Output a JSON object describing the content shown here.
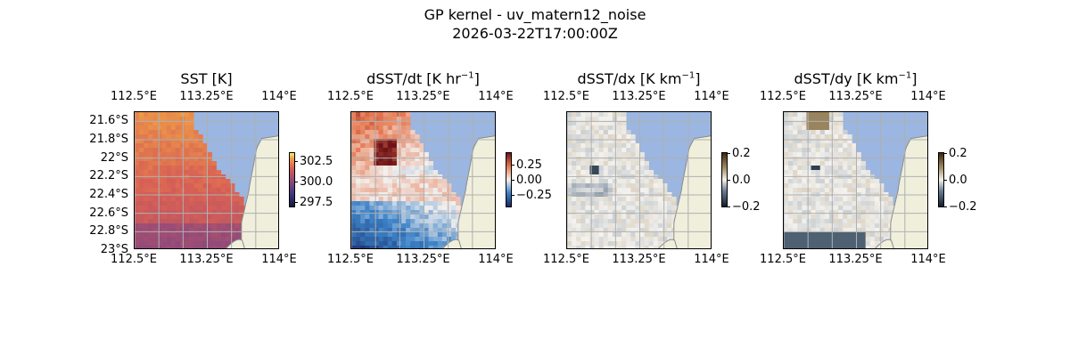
{
  "chart_data": {
    "type": "heatmap",
    "suptitle": "GP kernel - uv_matern12_noise",
    "timestamp": "2026-03-22T17:00:00Z",
    "x_ticks": [
      "112.5°E",
      "113.25°E",
      "114°E"
    ],
    "xlim": [
      112.5,
      114.0
    ],
    "x_tick_values": [
      112.5,
      113.25,
      114.0
    ],
    "ylim": [
      -23.0,
      -21.5
    ],
    "y_tick_values": [
      -21.6,
      -21.8,
      -22.0,
      -22.2,
      -22.4,
      -22.6,
      -22.8,
      -23.0
    ],
    "y_ticks": [
      "21.6°S",
      "21.8°S",
      "22°S",
      "22.2°S",
      "22.4°S",
      "22.6°S",
      "22.8°S",
      "23°S"
    ],
    "grid": true,
    "colors": {
      "ocean": "#9bb6e0",
      "land": "#efefdc",
      "coast": "#8a8a8a",
      "grid": "#b0b0b0"
    },
    "panels": [
      {
        "id": "sst",
        "title_base": "SST [K]",
        "title_unit_exp": "",
        "title_unit_tail": "",
        "colormap": "thermal",
        "clim": [
          297.0,
          303.5
        ],
        "colorbar_ticks": [
          302.5,
          300.0,
          297.5
        ],
        "colorbar_labels": [
          "302.5",
          "300.0",
          "297.5"
        ]
      },
      {
        "id": "dsst-dt",
        "title_base": "dSST/dt [K hr",
        "title_unit_exp": "−1",
        "title_unit_tail": "]",
        "colormap": "balance",
        "clim": [
          -0.45,
          0.45
        ],
        "colorbar_ticks": [
          0.25,
          0.0,
          -0.25
        ],
        "colorbar_labels": [
          "0.25",
          "0.00",
          "−0.25"
        ]
      },
      {
        "id": "dsst-dx",
        "title_base": "dSST/dx [K km",
        "title_unit_exp": "−1",
        "title_unit_tail": "]",
        "colormap": "diff",
        "clim": [
          -0.2,
          0.2
        ],
        "colorbar_ticks": [
          0.2,
          0.0,
          -0.2
        ],
        "colorbar_labels": [
          "0.2",
          "0.0",
          "−0.2"
        ]
      },
      {
        "id": "dsst-dy",
        "title_base": "dSST/dy [K km",
        "title_unit_exp": "−1",
        "title_unit_tail": "]",
        "colormap": "diff",
        "clim": [
          -0.2,
          0.2
        ],
        "colorbar_ticks": [
          0.2,
          0.0,
          -0.2
        ],
        "colorbar_labels": [
          "0.2",
          "0.0",
          "−0.2"
        ]
      }
    ]
  }
}
